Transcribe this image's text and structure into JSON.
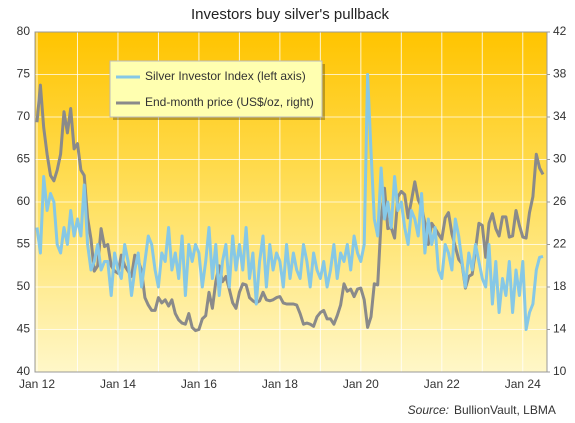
{
  "chart_data": {
    "type": "line",
    "title": "Investors  buy silver's pullback",
    "source_label": "Source:",
    "source": "BullionVault, LBMA",
    "categories": [
      "Jan 12",
      null,
      null,
      null,
      null,
      null,
      null,
      null,
      null,
      null,
      null,
      null,
      null,
      null,
      null,
      null,
      null,
      null,
      null,
      null,
      null,
      null,
      null,
      null,
      "Jan 14",
      null,
      null,
      null,
      null,
      null,
      null,
      null,
      null,
      null,
      null,
      null,
      null,
      null,
      null,
      null,
      null,
      null,
      null,
      null,
      null,
      null,
      null,
      null,
      "Jan 16",
      null,
      null,
      null,
      null,
      null,
      null,
      null,
      null,
      null,
      null,
      null,
      null,
      null,
      null,
      null,
      null,
      null,
      null,
      null,
      null,
      null,
      null,
      null,
      "Jan 18",
      null,
      null,
      null,
      null,
      null,
      null,
      null,
      null,
      null,
      null,
      null,
      null,
      null,
      null,
      null,
      null,
      null,
      null,
      null,
      null,
      null,
      null,
      null,
      "Jan 20",
      null,
      null,
      null,
      null,
      null,
      null,
      null,
      null,
      null,
      null,
      null,
      null,
      null,
      null,
      null,
      null,
      null,
      null,
      null,
      null,
      null,
      null,
      null,
      "Jan 22",
      null,
      null,
      null,
      null,
      null,
      null,
      null,
      null,
      null,
      null,
      null,
      null,
      null,
      null,
      null,
      null,
      null,
      null,
      null,
      null,
      null,
      null,
      null,
      "Jan 24",
      null,
      null,
      null,
      null,
      null,
      null
    ],
    "series": [
      {
        "name": "Silver Investor Index (left axis)",
        "color": "#86c8e6",
        "axis": "y",
        "values": [
          57,
          54,
          63,
          59,
          61,
          60,
          55,
          54,
          57,
          55,
          59,
          56,
          58,
          56,
          62,
          55,
          52,
          53,
          55,
          52,
          53,
          53,
          49,
          54,
          52,
          51,
          55,
          53,
          49,
          52,
          54,
          50,
          53,
          56,
          55,
          52,
          50,
          54,
          53,
          57,
          52,
          54,
          51,
          56,
          49,
          55,
          53,
          55,
          54,
          50,
          53,
          57,
          51,
          55,
          49,
          53,
          55,
          50,
          56,
          52,
          55,
          52,
          57,
          51,
          54,
          48,
          53,
          56,
          50,
          55,
          52,
          54,
          53,
          50,
          55,
          51,
          54,
          52,
          51,
          55,
          53,
          50,
          54,
          52,
          51,
          53,
          50,
          52,
          55,
          51,
          54,
          53,
          55,
          52,
          56,
          54,
          53,
          55,
          75,
          66,
          58,
          56,
          64,
          58,
          60,
          57,
          63,
          59,
          60,
          57,
          55,
          59,
          58,
          56,
          61,
          54,
          58,
          55,
          57,
          52,
          51,
          55,
          54,
          52,
          58,
          56,
          53,
          50,
          54,
          52,
          55,
          53,
          51,
          50,
          55,
          48,
          53,
          47,
          51,
          49,
          53,
          47,
          52,
          49,
          53,
          45,
          47,
          48,
          52,
          53.5,
          53.6
        ]
      },
      {
        "name": "End-month price (US$/oz, right)",
        "color": "#8a8a8a",
        "axis": "y2",
        "values": [
          33.5,
          37,
          33,
          30.5,
          28.5,
          28,
          29,
          30.5,
          34.5,
          32.5,
          34.8,
          31,
          31.5,
          29,
          28.5,
          24.5,
          22.5,
          19.5,
          20,
          23.5,
          21.8,
          22,
          20,
          19.5,
          19.3,
          21,
          20,
          19.5,
          19,
          21,
          20.5,
          19.5,
          17,
          16.3,
          15.8,
          15.8,
          17,
          16.5,
          16.8,
          16.2,
          16.8,
          15.5,
          14.9,
          14.6,
          14.5,
          15.5,
          14.2,
          13.9,
          14,
          15,
          15.3,
          17.5,
          16,
          18.5,
          20,
          18.5,
          19,
          17.8,
          16.5,
          16,
          17.5,
          18.3,
          18.2,
          17,
          16.7,
          16.5,
          16.7,
          17.5,
          16.8,
          16.7,
          16.8,
          17,
          17.1,
          16.5,
          16.4,
          16.4,
          16.4,
          16.3,
          15.5,
          14.5,
          14.6,
          14.5,
          14.3,
          15.2,
          15.6,
          15.8,
          15,
          15,
          14.5,
          15.3,
          16.3,
          18.3,
          17.6,
          17.8,
          17.1,
          17.8,
          17.9,
          16.8,
          14.2,
          15.2,
          18.3,
          18.2,
          24.2,
          27.3,
          23.5,
          23.6,
          22.6,
          26.5,
          27,
          26.7,
          24.5,
          26.1,
          27.9,
          26.2,
          25.5,
          24,
          22,
          24,
          23.5,
          23,
          22.5,
          24.5,
          25,
          23,
          21.8,
          20.6,
          20.2,
          17.9,
          19,
          19.2,
          21.5,
          24,
          23.8,
          20.8,
          24,
          24.9,
          23.5,
          22.8,
          24.6,
          24.6,
          22.7,
          22.8,
          25.2,
          23.8,
          22.7,
          22.6,
          25,
          26.5,
          30.5,
          29.2,
          28.6
        ]
      }
    ],
    "ylim": [
      40,
      80
    ],
    "yticks": [
      40,
      45,
      50,
      55,
      60,
      65,
      70,
      75,
      80
    ],
    "y2lim": [
      10,
      42
    ],
    "y2ticks": [
      10,
      14,
      18,
      22,
      26,
      30,
      34,
      38,
      42
    ],
    "grid": true
  }
}
